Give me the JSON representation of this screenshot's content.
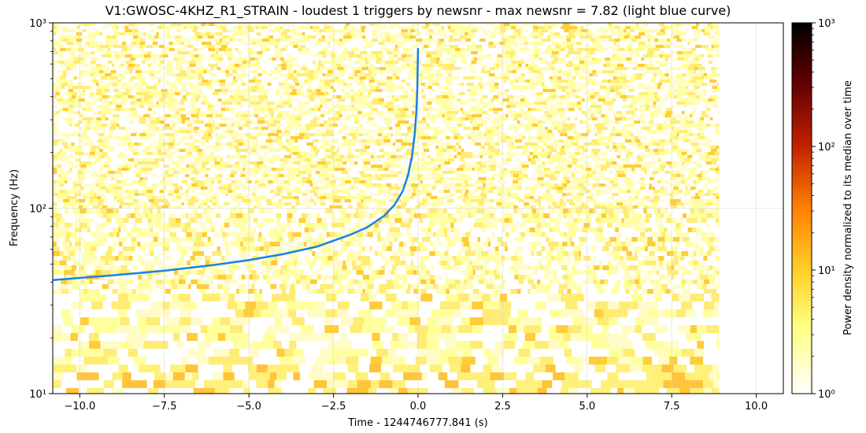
{
  "chart_data": {
    "type": "heatmap",
    "title": "V1:GWOSC-4KHZ_R1_STRAIN - loudest 1 triggers by newsnr - max newsnr = 7.82 (light blue curve)",
    "xlabel": "Time - 1244746777.841 (s)",
    "ylabel": "Frequency (Hz)",
    "xlim": [
      -10.8,
      10.8
    ],
    "ylim": [
      10,
      1000
    ],
    "yscale": "log",
    "x_ticks": [
      -10.0,
      -7.5,
      -5.0,
      -2.5,
      0.0,
      2.5,
      5.0,
      7.5,
      10.0
    ],
    "x_tick_labels": [
      "−10.0",
      "−7.5",
      "−5.0",
      "−2.5",
      "0.0",
      "2.5",
      "5.0",
      "7.5",
      "10.0"
    ],
    "y_ticks": [
      10,
      100,
      1000
    ],
    "y_tick_labels": [
      "10¹",
      "10²",
      "10³"
    ],
    "grid": true,
    "spectrogram_time_range": [
      -10.8,
      8.9
    ],
    "colorbar": {
      "label": "Power density normalized to its median over time",
      "scale": "log",
      "range": [
        1,
        1000
      ],
      "colormap": "afmhot_r",
      "ticks": [
        1,
        10,
        100,
        1000
      ],
      "tick_labels": [
        "10⁰",
        "10¹",
        "10²",
        "10³"
      ]
    },
    "series": [
      {
        "color": "#1a80e6",
        "x": [
          -10.8,
          -9.0,
          -7.5,
          -6.0,
          -5.0,
          -4.0,
          -3.0,
          -2.0,
          -1.5,
          -1.0,
          -0.7,
          -0.45,
          -0.3,
          -0.18,
          -0.1,
          -0.05,
          -0.02,
          0.0
        ],
        "y": [
          41,
          43.5,
          46,
          49.5,
          52.5,
          56.5,
          62,
          72,
          79,
          91,
          104,
          124,
          150,
          190,
          250,
          330,
          450,
          730
        ]
      }
    ]
  }
}
